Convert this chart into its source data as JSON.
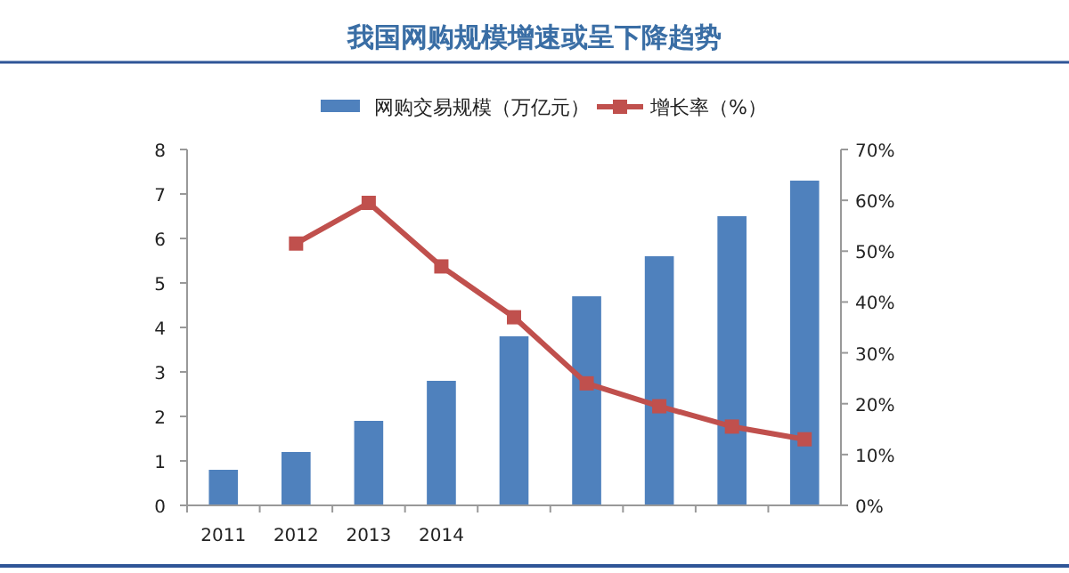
{
  "chart_data": {
    "type": "bar",
    "title": "我国网购规模增速或呈下降趋势",
    "categories": [
      "2011",
      "2012",
      "2013",
      "2014",
      null,
      null,
      null,
      null,
      null
    ],
    "series": [
      {
        "name": "网购交易规模（万亿元）",
        "color": "#4f81bd",
        "values": [
          0.8,
          1.2,
          1.9,
          2.8,
          3.8,
          4.7,
          5.6,
          6.5,
          7.3
        ]
      },
      {
        "name": "增长率（%）",
        "type": "line",
        "axis": "y2",
        "color": "#c0504d",
        "marker": "square",
        "values": [
          null,
          51.5,
          59.5,
          47,
          37,
          24,
          19.5,
          15.5,
          13
        ]
      }
    ],
    "ylim": [
      0,
      8
    ],
    "yticks": [
      0,
      1,
      2,
      3,
      4,
      5,
      6,
      7,
      8
    ],
    "y2lim": [
      0,
      70
    ],
    "y2ticks": [
      {
        "value": 0,
        "label": "0%"
      },
      {
        "value": 10,
        "label": "10%"
      },
      {
        "value": 20,
        "label": "20%"
      },
      {
        "value": 30,
        "label": "30%"
      },
      {
        "value": 40,
        "label": "40%"
      },
      {
        "value": 50,
        "label": "50%"
      },
      {
        "value": 60,
        "label": "60%"
      },
      {
        "value": 70,
        "label": "70%"
      }
    ],
    "grid": false,
    "legend": "top"
  }
}
